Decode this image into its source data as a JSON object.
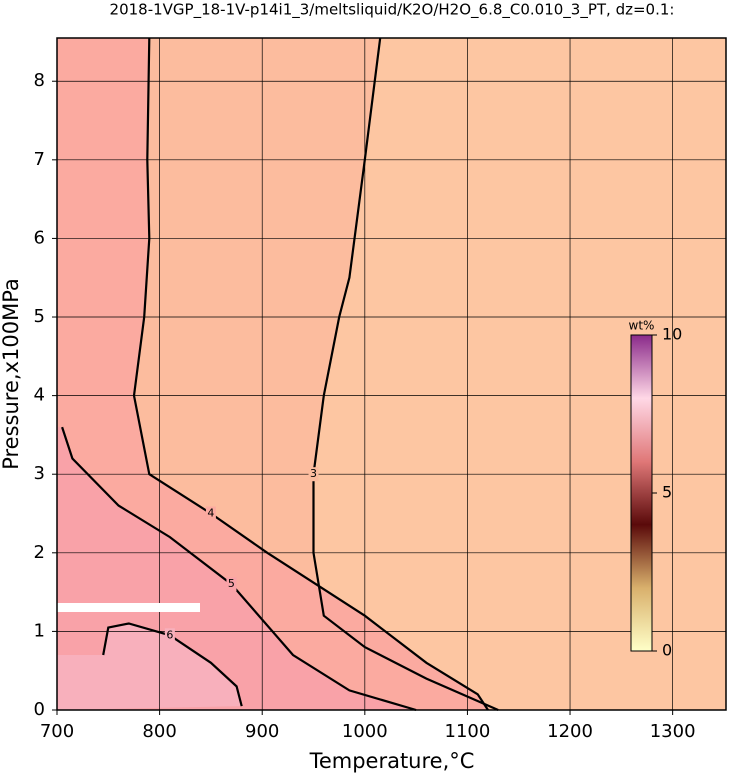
{
  "chart_data": {
    "type": "contour",
    "title": "2018-1VGP_18-1V-p14i1_3/meltsliquid/K2O/H2O_6.8_C0.010_3_PT, dz=0.1:",
    "x_label": "Temperature,°C",
    "y_label": "Pressure,x100MPa",
    "xlim": [
      700,
      1352
    ],
    "xticks": [
      700,
      800,
      900,
      1000,
      1100,
      1200,
      1300
    ],
    "ylim": [
      0,
      8.55
    ],
    "yticks": [
      0,
      1,
      2,
      3,
      4,
      5,
      6,
      7,
      8
    ],
    "grid": true,
    "background": "#fdc6a2",
    "contours": [
      {
        "level": 3,
        "fill": "#fcbc9e",
        "x": [
          1015,
          1000,
          985,
          975,
          960,
          950,
          950,
          960,
          1000,
          1060,
          1130
        ],
        "y": [
          8.55,
          7.0,
          5.5,
          5.0,
          4.0,
          3.0,
          2.0,
          1.2,
          0.8,
          0.4,
          0
        ]
      },
      {
        "level": 4,
        "fill": "#fbaaa0",
        "x": [
          790,
          788,
          790,
          785,
          775,
          790,
          850,
          905,
          1000,
          1060,
          1110,
          1120
        ],
        "y": [
          8.55,
          7.0,
          6.0,
          5.0,
          4.0,
          3.0,
          2.5,
          2.0,
          1.2,
          0.6,
          0.2,
          0
        ]
      },
      {
        "level": 5,
        "fill": "#f9a2a8",
        "x": [
          705,
          715,
          760,
          810,
          870,
          930,
          985,
          1050
        ],
        "y": [
          3.6,
          3.2,
          2.6,
          2.2,
          1.6,
          0.7,
          0.25,
          0
        ]
      },
      {
        "level": 6,
        "fill": "#f8b0bc",
        "x": [
          745,
          750,
          770,
          810,
          850,
          875,
          880
        ],
        "y": [
          0.7,
          1.05,
          1.1,
          0.95,
          0.6,
          0.3,
          0.05
        ]
      }
    ],
    "colorbar": {
      "title": "wt%",
      "lim": [
        0,
        10
      ],
      "ticks": [
        0,
        5,
        10
      ],
      "colors": [
        "#ffffc8",
        "#d9b06c",
        "#5a0a0a",
        "#e07878",
        "#ffd8e6",
        "#8a2a8a"
      ]
    }
  }
}
